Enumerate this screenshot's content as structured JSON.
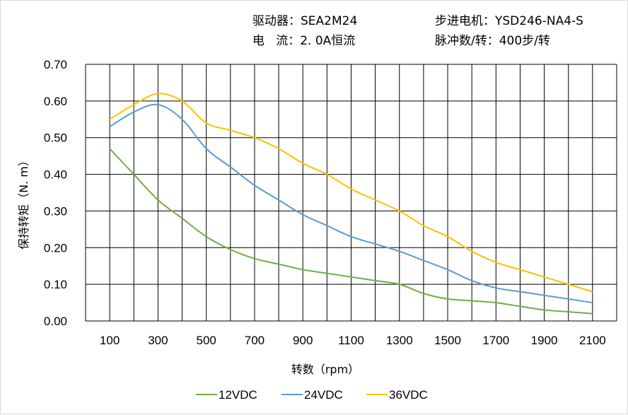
{
  "header": {
    "driver": "驱动器：SEA2M24",
    "current": "电   流：2. 0A恒流",
    "motor": "步进电机：YSD246-NA4-S",
    "pulses": "脉冲数/转：400步/转"
  },
  "chart_data": {
    "type": "line",
    "title": "",
    "xlabel": "转数（rpm）",
    "ylabel": "保持转矩（N. m）",
    "xlim": [
      0,
      2200
    ],
    "ylim": [
      0,
      0.7
    ],
    "grid": true,
    "legend": "bottom",
    "x_ticks": [
      "100",
      "300",
      "500",
      "700",
      "900",
      "1100",
      "1300",
      "1500",
      "1700",
      "1900",
      "2100"
    ],
    "y_ticks": [
      "0.00",
      "0.10",
      "0.20",
      "0.30",
      "0.40",
      "0.50",
      "0.60",
      "0.70"
    ],
    "x": [
      100,
      200,
      300,
      400,
      500,
      600,
      700,
      800,
      900,
      1000,
      1100,
      1200,
      1300,
      1400,
      1500,
      1600,
      1700,
      1800,
      1900,
      2000,
      2100
    ],
    "series": [
      {
        "name": "12VDC",
        "color": "#70ad47",
        "values": [
          0.47,
          0.4,
          0.33,
          0.28,
          0.23,
          0.195,
          0.17,
          0.155,
          0.14,
          0.13,
          0.12,
          0.11,
          0.1,
          0.075,
          0.06,
          0.055,
          0.05,
          0.04,
          0.03,
          0.025,
          0.02
        ]
      },
      {
        "name": "24VDC",
        "color": "#5b9bd5",
        "values": [
          0.53,
          0.57,
          0.59,
          0.55,
          0.47,
          0.42,
          0.37,
          0.33,
          0.29,
          0.26,
          0.23,
          0.21,
          0.19,
          0.165,
          0.14,
          0.11,
          0.09,
          0.08,
          0.07,
          0.06,
          0.05
        ]
      },
      {
        "name": "36VDC",
        "color": "#ffc000",
        "values": [
          0.55,
          0.59,
          0.62,
          0.6,
          0.54,
          0.52,
          0.5,
          0.47,
          0.43,
          0.4,
          0.36,
          0.33,
          0.3,
          0.26,
          0.23,
          0.19,
          0.16,
          0.14,
          0.12,
          0.1,
          0.08
        ]
      }
    ]
  }
}
